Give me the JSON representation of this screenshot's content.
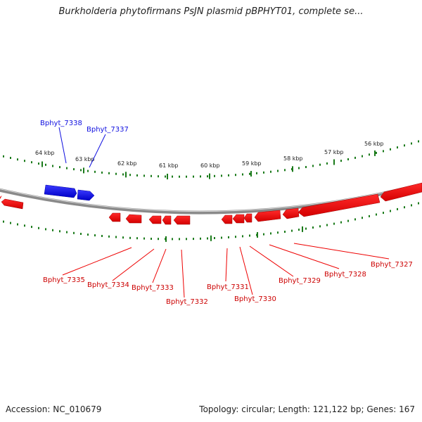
{
  "title": "Burkholderia phytofirmans PsJN plasmid pBPHYT01, complete se...",
  "footer": {
    "accession": "Accession: NC_010679",
    "stats": "Topology: circular; Length: 121,122 bp; Genes: 167"
  },
  "colors": {
    "forward_gene": "#1010e0",
    "reverse_gene": "#ee0000",
    "tick": "#1a7a1a",
    "backbone": "#8a8a8a"
  },
  "scale_labels": [
    "64 kbp",
    "63 kbp",
    "62 kbp",
    "61 kbp",
    "60 kbp",
    "59 kbp",
    "58 kbp",
    "57 kbp",
    "56 kbp"
  ],
  "forward_genes": [
    "Bphyt_7338",
    "Bphyt_7337"
  ],
  "reverse_genes": [
    "Bphyt_7335",
    "Bphyt_7334",
    "Bphyt_7333",
    "Bphyt_7332",
    "Bphyt_7331",
    "Bphyt_7330",
    "Bphyt_7329",
    "Bphyt_7328",
    "Bphyt_7327"
  ]
}
